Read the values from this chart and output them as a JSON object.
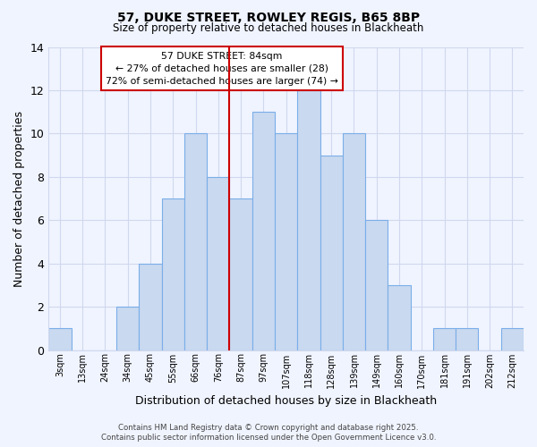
{
  "title": "57, DUKE STREET, ROWLEY REGIS, B65 8BP",
  "subtitle": "Size of property relative to detached houses in Blackheath",
  "xlabel": "Distribution of detached houses by size in Blackheath",
  "ylabel": "Number of detached properties",
  "bin_labels": [
    "3sqm",
    "13sqm",
    "24sqm",
    "34sqm",
    "45sqm",
    "55sqm",
    "66sqm",
    "76sqm",
    "87sqm",
    "97sqm",
    "107sqm",
    "118sqm",
    "128sqm",
    "139sqm",
    "149sqm",
    "160sqm",
    "170sqm",
    "181sqm",
    "191sqm",
    "202sqm",
    "212sqm"
  ],
  "counts": [
    1,
    0,
    0,
    2,
    4,
    7,
    10,
    8,
    7,
    11,
    10,
    12,
    9,
    10,
    6,
    3,
    0,
    1,
    1,
    0,
    1
  ],
  "bar_color": "#c9d9f0",
  "bar_edge_color": "#7aaee8",
  "property_bin_index": 8,
  "property_line_color": "#cc0000",
  "annotation_line1": "57 DUKE STREET: 84sqm",
  "annotation_line2": "← 27% of detached houses are smaller (28)",
  "annotation_line3": "72% of semi-detached houses are larger (74) →",
  "annotation_box_color": "#ffffff",
  "annotation_box_edge": "#cc0000",
  "ylim": [
    0,
    14
  ],
  "yticks": [
    0,
    2,
    4,
    6,
    8,
    10,
    12,
    14
  ],
  "footer_line1": "Contains HM Land Registry data © Crown copyright and database right 2025.",
  "footer_line2": "Contains public sector information licensed under the Open Government Licence v3.0.",
  "background_color": "#f0f4ff",
  "grid_color": "#d0d8ee"
}
